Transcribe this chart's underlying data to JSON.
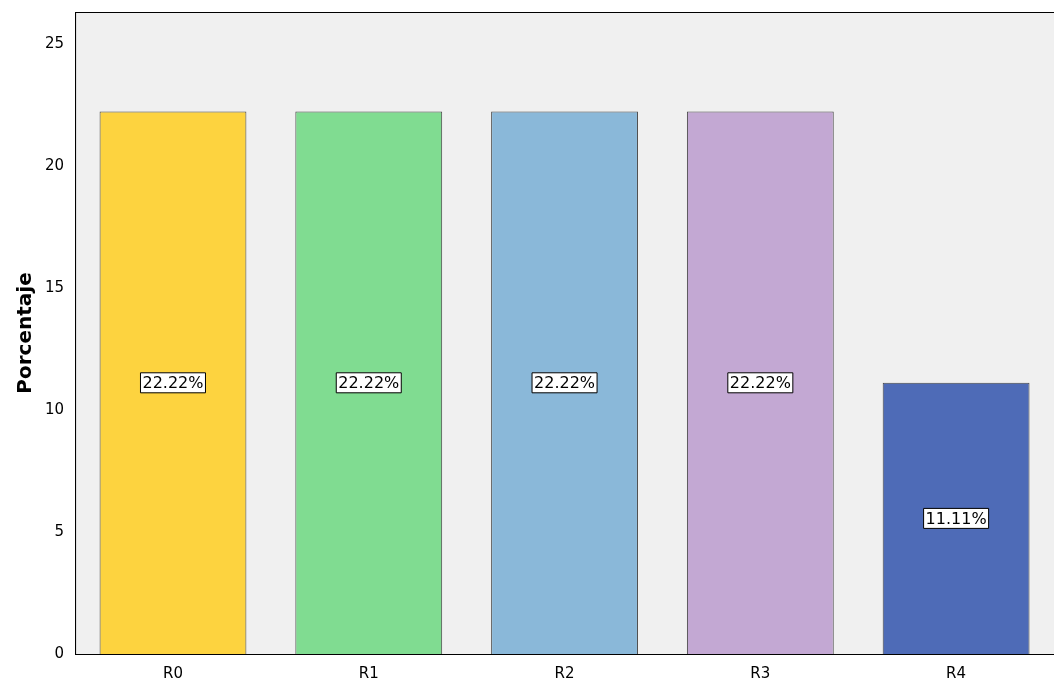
{
  "chart_data": {
    "type": "bar",
    "ylabel": "Porcentaje",
    "categories": [
      "R0",
      "R1",
      "R2",
      "R3",
      "R4"
    ],
    "values": [
      22.22,
      22.22,
      22.22,
      22.22,
      11.11
    ],
    "colors": [
      "#fdd33f",
      "#80dc91",
      "#8ab8d9",
      "#c3a8d3",
      "#4e6bb7"
    ],
    "value_labels": [
      "22.22%",
      "22.22%",
      "22.22%",
      "22.22%",
      "11.11%"
    ],
    "ylim": [
      0,
      26.3
    ],
    "yticks": [
      0,
      5,
      10,
      15,
      20,
      25
    ]
  }
}
